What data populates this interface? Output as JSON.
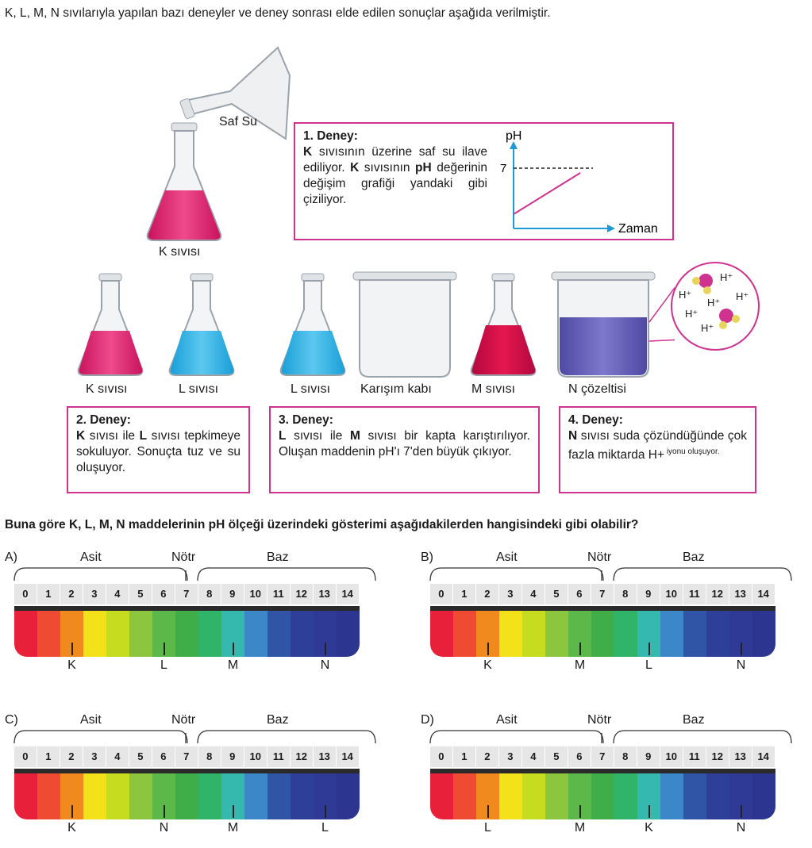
{
  "intro": "K, L, M, N sıvılarıyla yapılan bazı deneyler ve deney sonrası elde edilen sonuçlar aşağıda verilmiştir.",
  "top_labels": {
    "saf_su": "Saf Su",
    "k_sivisi": "K sıvısı"
  },
  "deney1": {
    "title": "1. Deney:",
    "text_parts": [
      "K",
      " sıvısının üzerine saf su ilave ediliyor. ",
      "K",
      " sıvısının ",
      "pH",
      " değerinin değişim grafiği yandaki gibi çiziliyor."
    ],
    "graph": {
      "y_label": "pH",
      "x_label": "Zaman",
      "tick": "7"
    }
  },
  "flask_labels": [
    "K sıvısı",
    "L sıvısı",
    "L sıvısı",
    "Karışım kabı",
    "M sıvısı",
    "N çözeltisi"
  ],
  "ion_labels": [
    "H⁺",
    "H⁺",
    "H⁺",
    "H⁺",
    "H⁺",
    "H⁺"
  ],
  "deney2": {
    "title": "2. Deney:",
    "text_parts": [
      "K",
      " sıvısı ile ",
      "L",
      " sıvısı tepkimeye sokuluyor. Sonuçta tuz ve su oluşuyor."
    ]
  },
  "deney3": {
    "title": "3. Deney:",
    "text_parts": [
      "L",
      " sıvısı ile ",
      "M",
      " sıvısı bir kapta karıştırılıyor. Oluşan maddenin pH'ı 7'den büyük çıkıyor."
    ]
  },
  "deney4": {
    "title": "4. Deney:",
    "text_parts": [
      "N",
      " sıvısı suda çözündüğünde çok fazla miktarda H",
      "+",
      " iyonu oluşuyor."
    ]
  },
  "question": "Buna göre K, L, M, N maddelerinin pH ölçeği üzerindeki gösterimi aşağıdakilerden hangisindeki gibi olabilir?",
  "scale": {
    "asit": "Asit",
    "notr": "Nötr",
    "baz": "Baz",
    "numbers": [
      "0",
      "1",
      "2",
      "3",
      "4",
      "5",
      "6",
      "7",
      "8",
      "9",
      "10",
      "11",
      "12",
      "13",
      "14"
    ],
    "colors": [
      "#e8203a",
      "#ef4a32",
      "#f08a1e",
      "#f3e21a",
      "#c6dc1e",
      "#8cc63e",
      "#5cb848",
      "#3fae49",
      "#2fb46a",
      "#35b9ae",
      "#3b87c7",
      "#3155a6",
      "#2e3f9a",
      "#2e3a95",
      "#2c3590"
    ]
  },
  "options": [
    {
      "letter": "A)",
      "markers": [
        {
          "label": "K",
          "ph": 2
        },
        {
          "label": "L",
          "ph": 6
        },
        {
          "label": "M",
          "ph": 9
        },
        {
          "label": "N",
          "ph": 13
        }
      ]
    },
    {
      "letter": "B)",
      "markers": [
        {
          "label": "K",
          "ph": 2
        },
        {
          "label": "M",
          "ph": 6
        },
        {
          "label": "L",
          "ph": 9
        },
        {
          "label": "N",
          "ph": 13
        }
      ]
    },
    {
      "letter": "C)",
      "markers": [
        {
          "label": "K",
          "ph": 2
        },
        {
          "label": "N",
          "ph": 6
        },
        {
          "label": "M",
          "ph": 9
        },
        {
          "label": "L",
          "ph": 13
        }
      ]
    },
    {
      "letter": "D)",
      "markers": [
        {
          "label": "L",
          "ph": 2
        },
        {
          "label": "M",
          "ph": 6
        },
        {
          "label": "K",
          "ph": 9
        },
        {
          "label": "N",
          "ph": 13
        }
      ]
    }
  ]
}
